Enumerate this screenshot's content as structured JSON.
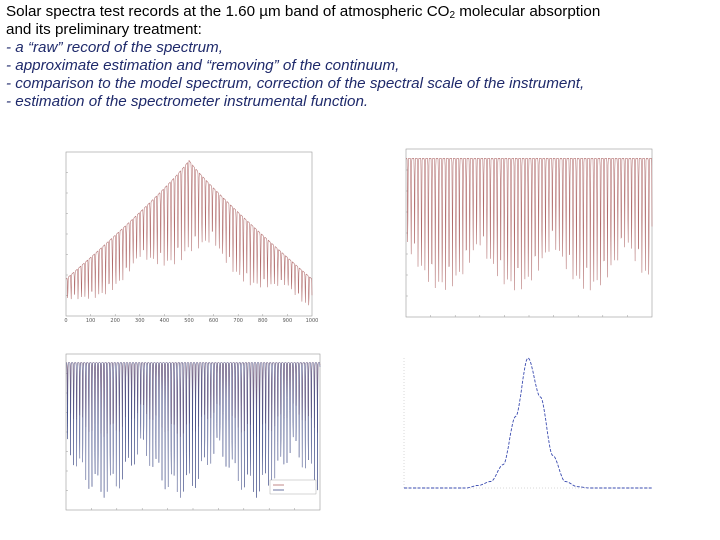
{
  "heading": {
    "line1_prefix": "Solar spectra test records at the 1.60 µm band of atmospheric CO",
    "line1_subscript": "2",
    "line1_suffix": " molecular absorption",
    "line2": "and its preliminary treatment:",
    "bullets": [
      "- a “raw” record of the spectrum,",
      "- approximate estimation and “removing” of the continuum,",
      "- comparison to the model spectrum, correction of the spectral scale of the instrument,",
      "- estimation of the spectrometer instrumental function."
    ]
  },
  "colors": {
    "heading_text": "#000000",
    "bullet_text": "#1f2a6b",
    "measured_line": "#b06a6a",
    "model_line": "#44508a",
    "instrument_line": "#3a4bb0"
  },
  "chart_data": [
    {
      "type": "line",
      "panel": "raw-spectrum",
      "x_ticks": [
        "0",
        "100",
        "200",
        "300",
        "400",
        "500",
        "600",
        "700",
        "800",
        "900",
        "1000"
      ],
      "xlim": [
        0,
        1000
      ],
      "ylim": [
        0.1,
        0.9
      ],
      "series": [
        {
          "kind": "envelope",
          "peak_x": 500,
          "edge_level": 0.28,
          "peak_level": 0.86,
          "dip_depth": 0.55,
          "period": 14
        }
      ]
    },
    {
      "type": "line",
      "panel": "continuum-removed",
      "xlim": [
        0,
        1000
      ],
      "ylim": [
        0.1,
        1.0
      ],
      "series": [
        {
          "kind": "flat",
          "level": 0.95,
          "dip_depth": 0.75,
          "period": 14
        }
      ]
    },
    {
      "type": "line",
      "panel": "model-comparison",
      "xlim": [
        0,
        1000
      ],
      "ylim": [
        0.1,
        1.0
      ],
      "series": [
        {
          "kind": "flat",
          "level": 0.95,
          "dip_depth": 0.45,
          "period": 12
        },
        {
          "kind": "flat",
          "level": 0.95,
          "dip_depth": 0.82,
          "period": 12
        }
      ]
    },
    {
      "type": "line",
      "panel": "instrument-function",
      "x": [
        0.0,
        0.25,
        0.5,
        0.6,
        0.7,
        0.8,
        0.9,
        1.0,
        1.1,
        1.2,
        1.3,
        1.4,
        1.5,
        1.75,
        2.0
      ],
      "y": [
        0.0,
        0.0,
        0.0,
        0.02,
        0.05,
        0.18,
        0.55,
        1.0,
        0.7,
        0.25,
        0.05,
        0.01,
        0.0,
        0.0,
        0.0
      ],
      "xlim": [
        0,
        2
      ],
      "ylim": [
        0,
        1.0
      ]
    }
  ]
}
